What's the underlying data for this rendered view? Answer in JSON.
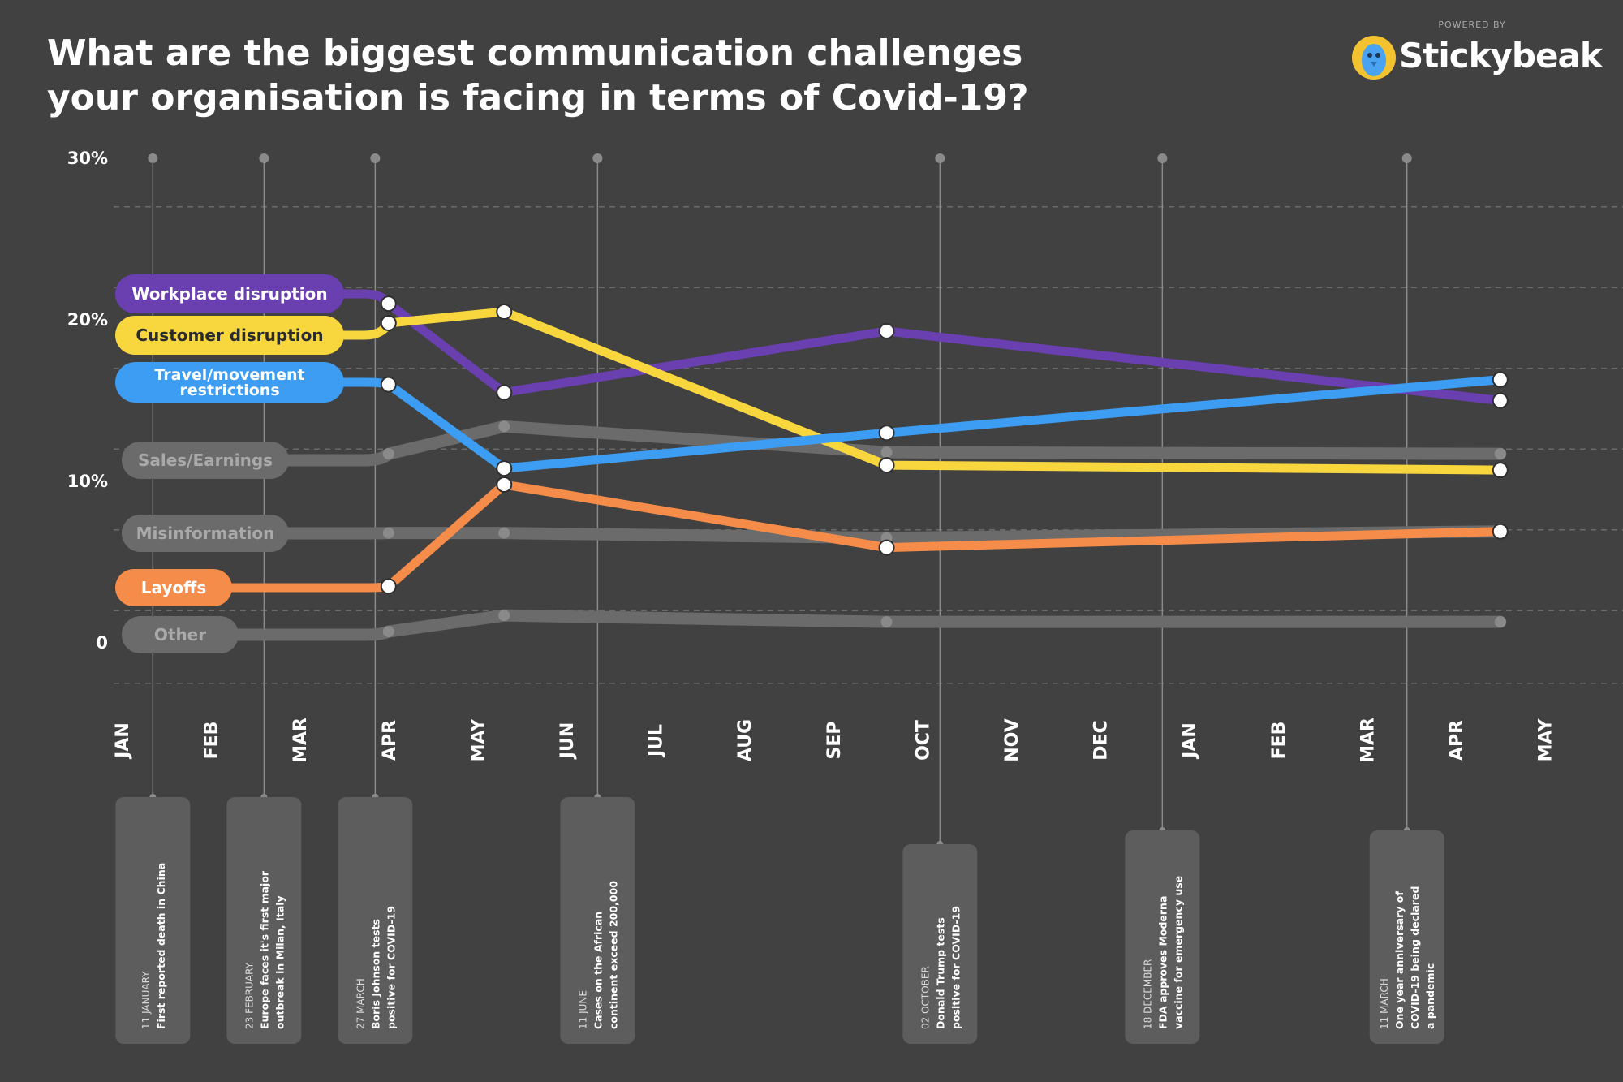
{
  "title": "What are the biggest communication challenges your organisation is facing in terms of Covid-19?",
  "brand": {
    "powered_by": "POWERED BY",
    "name": "Stickybeak",
    "icon": "stickybeak-bird-icon",
    "accent": "#f2c231",
    "bird_color": "#4aa3f0"
  },
  "chart_data": {
    "type": "line",
    "title": "What are the biggest communication challenges your organisation is facing in terms of Covid-19?",
    "xlabel": "",
    "ylabel": "",
    "ylim": [
      0,
      30
    ],
    "yticks": [
      {
        "value": 0,
        "label": "0"
      },
      {
        "value": 10,
        "label": "10%"
      },
      {
        "value": 20,
        "label": "20%"
      },
      {
        "value": 30,
        "label": "30%"
      }
    ],
    "grid": true,
    "months": [
      "JAN",
      "FEB",
      "MAR",
      "APR",
      "MAY",
      "JUN",
      "JUL",
      "AUG",
      "SEP",
      "OCT",
      "NOV",
      "DEC",
      "JAN",
      "FEB",
      "MAR",
      "APR",
      "MAY"
    ],
    "x_unit": "month index (0 = JAN 2020)",
    "survey_points": [
      3,
      4.3,
      8.6,
      15.5
    ],
    "series": [
      {
        "name": "Workplace disruption",
        "color": "#6a3fb0",
        "muted": false,
        "values": [
          21,
          15.5,
          19.3,
          15
        ]
      },
      {
        "name": "Customer disruption",
        "color": "#f7d63e",
        "muted": false,
        "values": [
          19.8,
          20.5,
          11,
          10.7
        ]
      },
      {
        "name": "Travel/movement restrictions",
        "color": "#3d9df2",
        "muted": false,
        "values": [
          16,
          10.8,
          13,
          16.3
        ]
      },
      {
        "name": "Sales/Earnings",
        "color": "#6b6b6b",
        "muted": true,
        "values": [
          11.7,
          13.4,
          11.8,
          11.7
        ]
      },
      {
        "name": "Misinformation",
        "color": "#6b6b6b",
        "muted": true,
        "values": [
          6.8,
          6.8,
          6.5,
          6.9
        ]
      },
      {
        "name": "Layoffs",
        "color": "#f68c4a",
        "muted": false,
        "values": [
          3.5,
          9.8,
          5.9,
          6.9
        ]
      },
      {
        "name": "Other",
        "color": "#6b6b6b",
        "muted": true,
        "values": [
          0.7,
          1.7,
          1.3,
          1.3
        ]
      }
    ],
    "events": [
      {
        "x": 0.35,
        "date": "11 JANUARY",
        "lines": [
          "First reported death in China"
        ]
      },
      {
        "x": 1.6,
        "date": "23 FEBRUARY",
        "lines": [
          "Europe faces it's first major",
          "outbreak in Milan, Italy"
        ]
      },
      {
        "x": 2.85,
        "date": "27 MARCH",
        "lines": [
          "Boris Johnson tests",
          "positive for COVID-19"
        ]
      },
      {
        "x": 5.35,
        "date": "11 JUNE",
        "lines": [
          "Cases on the African",
          "continent exceed 200,000"
        ]
      },
      {
        "x": 9.2,
        "date": "02 OCTOBER",
        "lines": [
          "Donald Trump tests",
          "positive for COVID-19"
        ]
      },
      {
        "x": 11.7,
        "date": "18 DECEMBER",
        "lines": [
          "FDA approves Moderna",
          "vaccine for emergency use"
        ]
      },
      {
        "x": 14.45,
        "date": "11 MARCH",
        "lines": [
          "One year anniversary of",
          "COVID-19 being declared",
          "a pandemic"
        ]
      }
    ]
  }
}
